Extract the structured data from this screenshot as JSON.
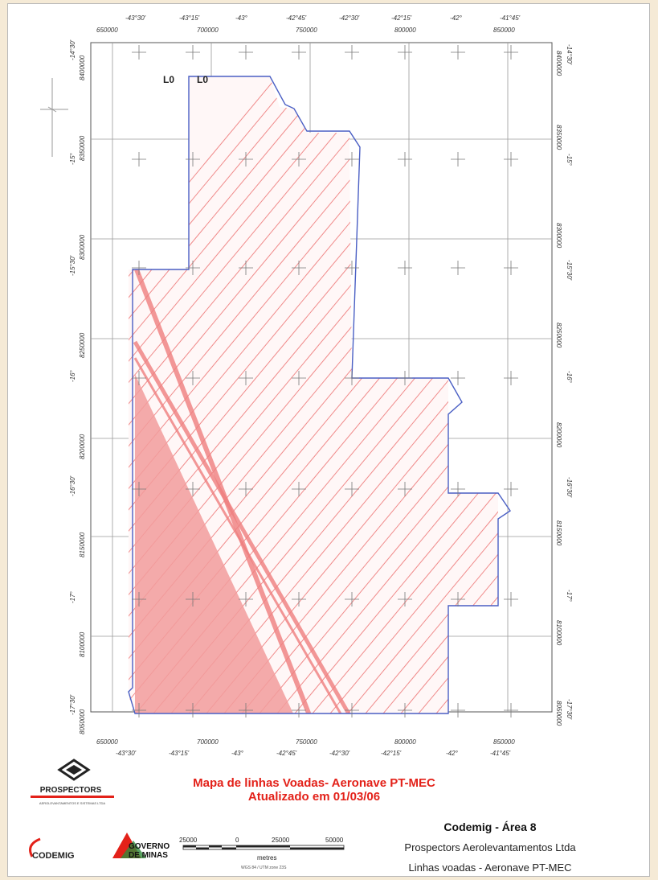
{
  "map": {
    "title_line1": "Mapa de linhas Voadas- Aeronave PT-MEC",
    "title_line2": "Atualizado em 01/03/06",
    "line_labels": [
      "L0",
      "L0"
    ],
    "lon_top": [
      "-43°30'",
      "-43°15'",
      "-43°",
      "-42°45'",
      "-42°30'",
      "-42°15'",
      "-42°",
      "-41°45'"
    ],
    "lon_bottom": [
      "-43°30'",
      "-43°15'",
      "-43°",
      "-42°45'",
      "-42°30'",
      "-42°15'",
      "-42°",
      "-41°45'"
    ],
    "utm_east_top": [
      "650000",
      "700000",
      "750000",
      "800000",
      "850000"
    ],
    "utm_east_bottom": [
      "650000",
      "700000",
      "750000",
      "800000",
      "850000"
    ],
    "lat_left": [
      "-14°30'",
      "-15°",
      "-15°30'",
      "-16°",
      "-16°30'",
      "-17°",
      "-17°30'"
    ],
    "lat_right": [
      "-14°30'",
      "-15°",
      "-15°30'",
      "-16°",
      "-16°30'",
      "-17°",
      "-17°30'"
    ],
    "utm_north_left": [
      "8400000",
      "8350000",
      "8300000",
      "8250000",
      "8200000",
      "8150000",
      "8100000",
      "8050000"
    ],
    "utm_north_right": [
      "8400000",
      "8350000",
      "8300000",
      "8250000",
      "8200000",
      "8150000",
      "8100000",
      "8050000"
    ],
    "colors": {
      "hatch": "#f08a8a",
      "boundary": "#4a5fc4",
      "fill": "#f29c9c",
      "title": "#e32119"
    }
  },
  "scale_bar": {
    "labels": [
      "25000",
      "0",
      "25000",
      "50000"
    ],
    "unit": "metres",
    "datum": "WGS 84 / UTM zone 23S"
  },
  "logos": {
    "prospectors": "PROSPECTORS",
    "prospectors_sub": "AEROLEVANTAMENTOS E SISTEMAS LTDA",
    "codemig": "CODEMIG",
    "governo_line1": "GOVERNO",
    "governo_line2": "DE MINAS"
  },
  "info": {
    "line1": "Codemig - Área 8",
    "line2": "Prospectors Aerolevantamentos Ltda",
    "line3": "Linhas voadas - Aeronave PT-MEC"
  }
}
